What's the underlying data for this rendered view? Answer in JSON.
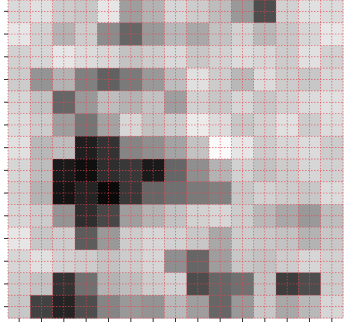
{
  "chart_data": {
    "type": "heatmap",
    "title": "",
    "xlabel": "",
    "ylabel": "",
    "rows": 14,
    "cols": 15,
    "value_range": [
      0,
      1
    ],
    "colormap": "gray",
    "grid": true,
    "grid_color": "#e8434f",
    "tick_color": "#333333",
    "values": [
      [
        0.85,
        0.88,
        0.8,
        0.78,
        0.9,
        0.62,
        0.7,
        0.84,
        0.8,
        0.74,
        0.6,
        0.3,
        0.82,
        0.88,
        0.86
      ],
      [
        0.9,
        0.82,
        0.7,
        0.8,
        0.55,
        0.4,
        0.6,
        0.72,
        0.66,
        0.76,
        0.82,
        0.72,
        0.78,
        0.84,
        0.9
      ],
      [
        0.82,
        0.84,
        0.9,
        0.86,
        0.84,
        0.76,
        0.8,
        0.85,
        0.78,
        0.82,
        0.86,
        0.84,
        0.8,
        0.88,
        0.82
      ],
      [
        0.8,
        0.58,
        0.7,
        0.5,
        0.38,
        0.48,
        0.6,
        0.74,
        0.88,
        0.8,
        0.72,
        0.86,
        0.8,
        0.78,
        0.84
      ],
      [
        0.84,
        0.76,
        0.4,
        0.6,
        0.74,
        0.7,
        0.76,
        0.62,
        0.82,
        0.78,
        0.84,
        0.78,
        0.82,
        0.86,
        0.88
      ],
      [
        0.86,
        0.8,
        0.62,
        0.46,
        0.64,
        0.84,
        0.76,
        0.8,
        0.92,
        0.86,
        0.78,
        0.82,
        0.88,
        0.8,
        0.86
      ],
      [
        0.88,
        0.72,
        0.74,
        0.12,
        0.2,
        0.52,
        0.56,
        0.64,
        0.76,
        0.98,
        0.9,
        0.8,
        0.84,
        0.86,
        0.8
      ],
      [
        0.84,
        0.74,
        0.1,
        0.06,
        0.18,
        0.22,
        0.1,
        0.4,
        0.56,
        0.7,
        0.82,
        0.76,
        0.8,
        0.84,
        0.82
      ],
      [
        0.82,
        0.7,
        0.08,
        0.14,
        0.04,
        0.22,
        0.4,
        0.44,
        0.48,
        0.5,
        0.78,
        0.82,
        0.8,
        0.78,
        0.86
      ],
      [
        0.84,
        0.8,
        0.58,
        0.18,
        0.28,
        0.62,
        0.7,
        0.76,
        0.82,
        0.84,
        0.8,
        0.72,
        0.66,
        0.6,
        0.74
      ],
      [
        0.9,
        0.78,
        0.8,
        0.36,
        0.6,
        0.8,
        0.84,
        0.82,
        0.78,
        0.66,
        0.8,
        0.78,
        0.76,
        0.7,
        0.78
      ],
      [
        0.84,
        0.88,
        0.82,
        0.8,
        0.76,
        0.8,
        0.84,
        0.56,
        0.4,
        0.62,
        0.78,
        0.76,
        0.8,
        0.84,
        0.82
      ],
      [
        0.8,
        0.76,
        0.2,
        0.44,
        0.7,
        0.74,
        0.8,
        0.82,
        0.3,
        0.4,
        0.44,
        0.76,
        0.24,
        0.3,
        0.8
      ],
      [
        0.78,
        0.26,
        0.14,
        0.3,
        0.52,
        0.6,
        0.58,
        0.72,
        0.62,
        0.4,
        0.6,
        0.78,
        0.66,
        0.72,
        0.84
      ]
    ]
  }
}
